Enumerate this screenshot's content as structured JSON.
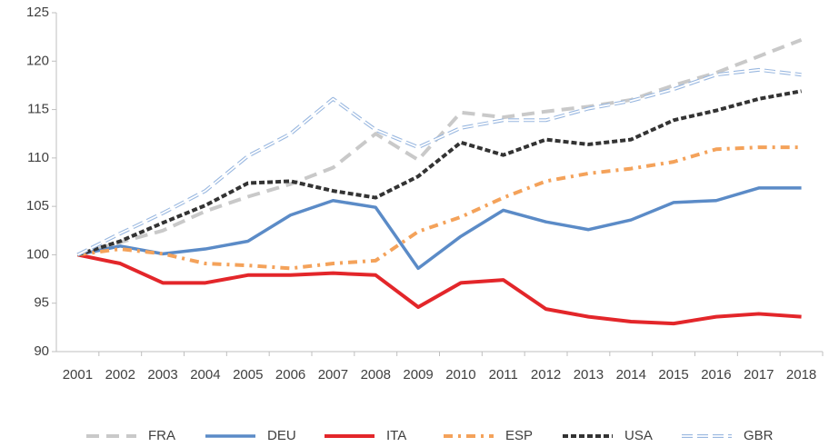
{
  "chart_data": {
    "type": "line",
    "categories": [
      "2001",
      "2002",
      "2003",
      "2004",
      "2005",
      "2006",
      "2007",
      "2008",
      "2009",
      "2010",
      "2011",
      "2012",
      "2013",
      "2014",
      "2015",
      "2016",
      "2017",
      "2018"
    ],
    "ylim": [
      90,
      125
    ],
    "yticks": [
      90,
      95,
      100,
      105,
      110,
      115,
      120,
      125
    ],
    "legend": "bottom",
    "series": [
      {
        "name": "FRA",
        "color": "#c9c9c9",
        "dash": "14 8",
        "values": [
          100,
          101.3,
          102.5,
          104.5,
          106,
          107.3,
          109,
          112.5,
          109.8,
          114.7,
          114.2,
          114.8,
          115.3,
          116,
          117.5,
          118.8,
          120.5,
          122.2
        ]
      },
      {
        "name": "DEU",
        "color": "#5b8bc7",
        "dash": "none",
        "values": [
          100,
          100.9,
          100.1,
          100.6,
          101.4,
          104.1,
          105.6,
          104.9,
          98.6,
          101.9,
          104.6,
          103.4,
          102.6,
          103.6,
          105.4,
          105.6,
          106.9,
          106.9
        ]
      },
      {
        "name": "ITA",
        "color": "#e3262a",
        "dash": "none",
        "values": [
          100,
          99.1,
          97.1,
          97.1,
          97.9,
          97.9,
          98.1,
          97.9,
          94.6,
          97.1,
          97.4,
          94.4,
          93.6,
          93.1,
          92.9,
          93.6,
          93.9,
          93.6
        ]
      },
      {
        "name": "ESP",
        "color": "#f4a25a",
        "dash": "10 6 3 6",
        "values": [
          100,
          100.6,
          100.1,
          99.1,
          98.9,
          98.6,
          99.1,
          99.4,
          102.4,
          103.9,
          105.9,
          107.6,
          108.4,
          108.9,
          109.6,
          110.9,
          111.1,
          111.1
        ]
      },
      {
        "name": "USA",
        "color": "#333333",
        "dash": "6 3",
        "values": [
          100,
          101.4,
          103.3,
          105.1,
          107.4,
          107.6,
          106.6,
          105.9,
          108.1,
          111.6,
          110.3,
          111.9,
          111.4,
          111.9,
          113.9,
          114.9,
          116.1,
          116.9
        ]
      },
      {
        "name": "GBR",
        "color": "#9ab8e0",
        "dash": "double",
        "values": [
          100,
          102.2,
          104.3,
          106.6,
          110.2,
          112.5,
          116.1,
          112.9,
          111.1,
          113.1,
          113.9,
          113.9,
          115.1,
          115.9,
          117.1,
          118.6,
          119.1,
          118.6
        ]
      }
    ]
  }
}
